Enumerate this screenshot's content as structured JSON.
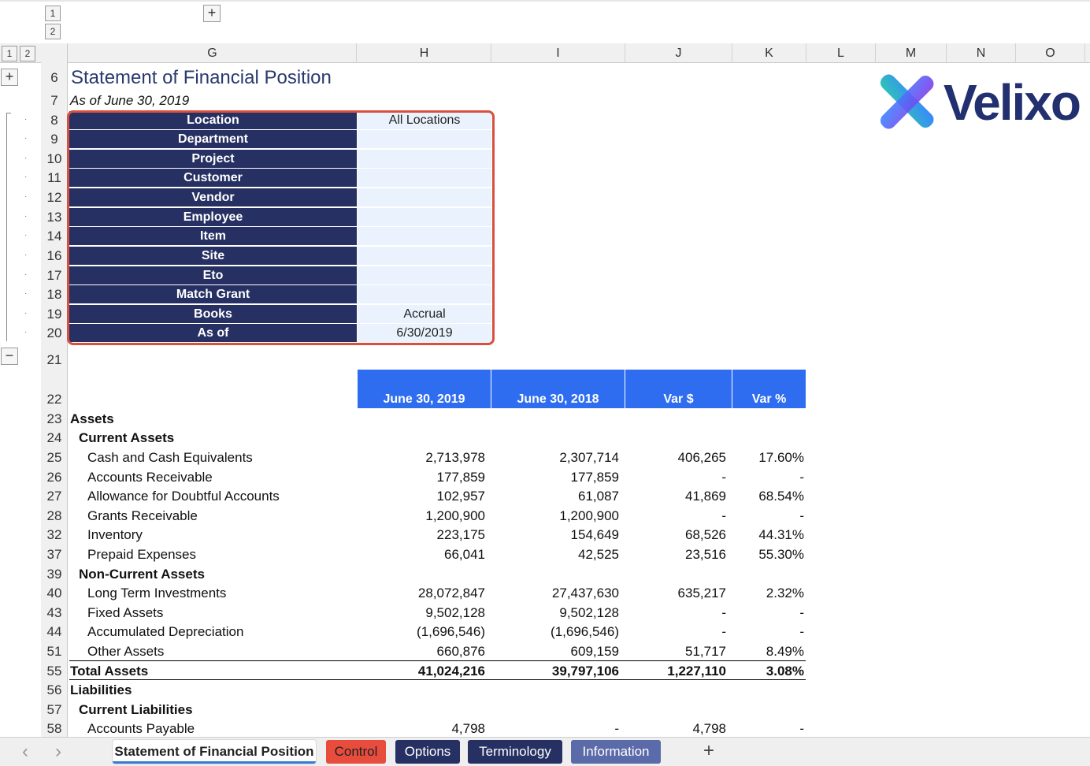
{
  "outline": {
    "level1": "1",
    "level2": "2",
    "expand_symbol": "+",
    "collapse_symbol": "−"
  },
  "columns": [
    "G",
    "H",
    "I",
    "J",
    "K",
    "L",
    "M",
    "N",
    "O"
  ],
  "rows": [
    "6",
    "7",
    "8",
    "9",
    "10",
    "11",
    "12",
    "13",
    "14",
    "16",
    "17",
    "18",
    "19",
    "20",
    "21",
    "22",
    "23",
    "24",
    "25",
    "26",
    "27",
    "28",
    "32",
    "37",
    "39",
    "40",
    "43",
    "44",
    "51",
    "55",
    "56",
    "57",
    "58"
  ],
  "title": "Statement of Financial Position",
  "subtitle": "As of June 30, 2019",
  "logo": {
    "text": "Velixo",
    "colors": [
      "#2ec4b6",
      "#3a86ff",
      "#8338ec"
    ]
  },
  "filters": [
    {
      "label": "Location",
      "value": "All Locations"
    },
    {
      "label": "Department",
      "value": ""
    },
    {
      "label": "Project",
      "value": ""
    },
    {
      "label": "Customer",
      "value": ""
    },
    {
      "label": "Vendor",
      "value": ""
    },
    {
      "label": "Employee",
      "value": ""
    },
    {
      "label": "Item",
      "value": ""
    },
    {
      "label": "Site",
      "value": ""
    },
    {
      "label": "Eto",
      "value": ""
    },
    {
      "label": "Match Grant",
      "value": ""
    },
    {
      "label": "Books",
      "value": "Accrual"
    },
    {
      "label": "As of",
      "value": "6/30/2019"
    }
  ],
  "table_headers": [
    "June 30, 2019",
    "June 30, 2018",
    "Var $",
    "Var %"
  ],
  "table_rows": [
    {
      "label": "Assets",
      "style": "section",
      "h": "",
      "i": "",
      "j": "",
      "k": ""
    },
    {
      "label": "Current Assets",
      "style": "subsection",
      "h": "",
      "i": "",
      "j": "",
      "k": ""
    },
    {
      "label": "Cash and Cash Equivalents",
      "style": "item",
      "h": "2,713,978",
      "i": "2,307,714",
      "j": "406,265",
      "k": "17.60%"
    },
    {
      "label": "Accounts Receivable",
      "style": "item",
      "h": "177,859",
      "i": "177,859",
      "j": "-",
      "k": "-"
    },
    {
      "label": "Allowance for Doubtful Accounts",
      "style": "item",
      "h": "102,957",
      "i": "61,087",
      "j": "41,869",
      "k": "68.54%"
    },
    {
      "label": "Grants Receivable",
      "style": "item",
      "h": "1,200,900",
      "i": "1,200,900",
      "j": "-",
      "k": "-"
    },
    {
      "label": "Inventory",
      "style": "item",
      "h": "223,175",
      "i": "154,649",
      "j": "68,526",
      "k": "44.31%"
    },
    {
      "label": "Prepaid Expenses",
      "style": "item",
      "h": "66,041",
      "i": "42,525",
      "j": "23,516",
      "k": "55.30%"
    },
    {
      "label": "Non-Current Assets",
      "style": "subsection",
      "h": "",
      "i": "",
      "j": "",
      "k": ""
    },
    {
      "label": "Long Term Investments",
      "style": "item",
      "h": "28,072,847",
      "i": "27,437,630",
      "j": "635,217",
      "k": "2.32%"
    },
    {
      "label": "Fixed Assets",
      "style": "item",
      "h": "9,502,128",
      "i": "9,502,128",
      "j": "-",
      "k": "-"
    },
    {
      "label": "Accumulated Depreciation",
      "style": "item",
      "h": "(1,696,546)",
      "i": "(1,696,546)",
      "j": "-",
      "k": "-"
    },
    {
      "label": "Other Assets",
      "style": "item",
      "h": "660,876",
      "i": "609,159",
      "j": "51,717",
      "k": "8.49%"
    },
    {
      "label": "Total Assets",
      "style": "total",
      "h": "41,024,216",
      "i": "39,797,106",
      "j": "1,227,110",
      "k": "3.08%"
    },
    {
      "label": "Liabilities",
      "style": "section",
      "h": "",
      "i": "",
      "j": "",
      "k": ""
    },
    {
      "label": "Current Liabilities",
      "style": "subsection",
      "h": "",
      "i": "",
      "j": "",
      "k": ""
    },
    {
      "label": "Accounts Payable",
      "style": "item",
      "h": "4,798",
      "i": "-",
      "j": "4,798",
      "k": "-"
    }
  ],
  "sheet_tabs": [
    {
      "label": "Statement of Financial Position",
      "color": "#ffffff",
      "text": "#222222",
      "active": true
    },
    {
      "label": "Control",
      "color": "#e84c3d",
      "text": "#222222",
      "active": false
    },
    {
      "label": "Options",
      "color": "#263062",
      "text": "#ffffff",
      "active": false
    },
    {
      "label": "Terminology",
      "color": "#263062",
      "text": "#ffffff",
      "active": false
    },
    {
      "label": "Information",
      "color": "#5b6aa8",
      "text": "#ffffff",
      "active": false
    }
  ],
  "nav": {
    "prev": "‹",
    "next": "›",
    "add": "+"
  }
}
